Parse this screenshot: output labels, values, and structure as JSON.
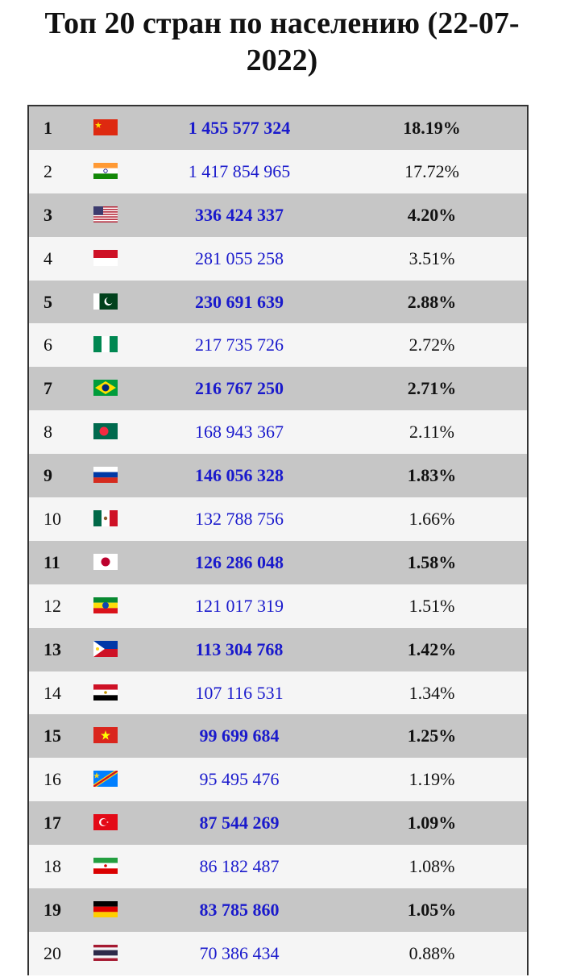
{
  "title": {
    "line1": "Топ 20 стран по населению (22-07-",
    "line2": "2022)"
  },
  "rows": [
    {
      "rank": "1",
      "flag": "china-flag-icon",
      "population": "1 455 577 324",
      "percent": "18.19%"
    },
    {
      "rank": "2",
      "flag": "india-flag-icon",
      "population": "1 417 854 965",
      "percent": "17.72%"
    },
    {
      "rank": "3",
      "flag": "usa-flag-icon",
      "population": "336 424 337",
      "percent": "4.20%"
    },
    {
      "rank": "4",
      "flag": "indonesia-flag-icon",
      "population": "281 055 258",
      "percent": "3.51%"
    },
    {
      "rank": "5",
      "flag": "pakistan-flag-icon",
      "population": "230 691 639",
      "percent": "2.88%"
    },
    {
      "rank": "6",
      "flag": "nigeria-flag-icon",
      "population": "217 735 726",
      "percent": "2.72%"
    },
    {
      "rank": "7",
      "flag": "brazil-flag-icon",
      "population": "216 767 250",
      "percent": "2.71%"
    },
    {
      "rank": "8",
      "flag": "bangladesh-flag-icon",
      "population": "168 943 367",
      "percent": "2.11%"
    },
    {
      "rank": "9",
      "flag": "russia-flag-icon",
      "population": "146 056 328",
      "percent": "1.83%"
    },
    {
      "rank": "10",
      "flag": "mexico-flag-icon",
      "population": "132 788 756",
      "percent": "1.66%"
    },
    {
      "rank": "11",
      "flag": "japan-flag-icon",
      "population": "126 286 048",
      "percent": "1.58%"
    },
    {
      "rank": "12",
      "flag": "ethiopia-flag-icon",
      "population": "121 017 319",
      "percent": "1.51%"
    },
    {
      "rank": "13",
      "flag": "philippines-flag-icon",
      "population": "113 304 768",
      "percent": "1.42%"
    },
    {
      "rank": "14",
      "flag": "egypt-flag-icon",
      "population": "107 116 531",
      "percent": "1.34%"
    },
    {
      "rank": "15",
      "flag": "vietnam-flag-icon",
      "population": "99 699 684",
      "percent": "1.25%"
    },
    {
      "rank": "16",
      "flag": "dr-congo-flag-icon",
      "population": "95 495 476",
      "percent": "1.19%"
    },
    {
      "rank": "17",
      "flag": "turkey-flag-icon",
      "population": "87 544 269",
      "percent": "1.09%"
    },
    {
      "rank": "18",
      "flag": "iran-flag-icon",
      "population": "86 182 487",
      "percent": "1.08%"
    },
    {
      "rank": "19",
      "flag": "germany-flag-icon",
      "population": "83 785 860",
      "percent": "1.05%"
    },
    {
      "rank": "20",
      "flag": "thailand-flag-icon",
      "population": "70 386 434",
      "percent": "0.88%"
    }
  ]
}
